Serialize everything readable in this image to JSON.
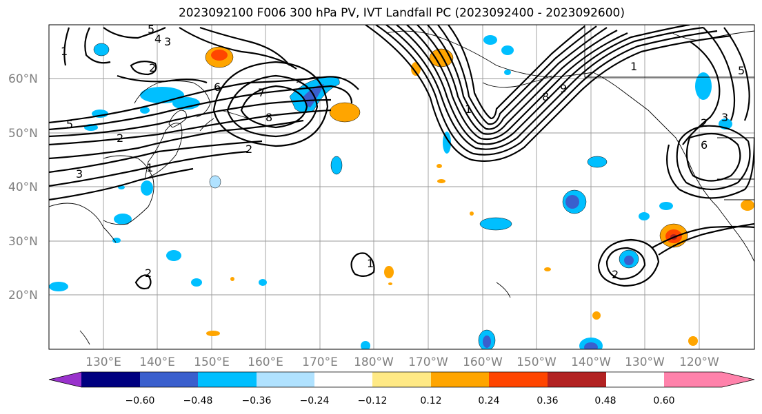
{
  "title": "2023092100 F006 300 hPa PV, IVT Landfall PC (2023092400 - 2023092600)",
  "map": {
    "lat_labels": [
      "60°N",
      "50°N",
      "40°N",
      "30°N",
      "20°N"
    ],
    "lon_labels": [
      "130°E",
      "140°E",
      "150°E",
      "160°E",
      "170°E",
      "180°W",
      "170°W",
      "160°W",
      "150°W",
      "140°W",
      "130°W",
      "120°W"
    ],
    "contour_labels": [
      "5",
      "4",
      "3",
      "1",
      "2",
      "6",
      "7",
      "8",
      "5",
      "2",
      "3",
      "1",
      "2",
      "1",
      "8",
      "9",
      "1",
      "3",
      "2",
      "6",
      "5",
      "2",
      "1",
      "2"
    ]
  },
  "colorbar": {
    "ticks": [
      "−0.60",
      "−0.48",
      "−0.36",
      "−0.24",
      "−0.12",
      "0.12",
      "0.24",
      "0.36",
      "0.48",
      "0.60"
    ],
    "colors": [
      "#9932cc",
      "#000080",
      "#3a5fcd",
      "#00bfff",
      "#b0e2ff",
      "#ffffff",
      "#ffe985",
      "#ffa500",
      "#ff4500",
      "#b22222",
      "#ff82ab"
    ]
  }
}
